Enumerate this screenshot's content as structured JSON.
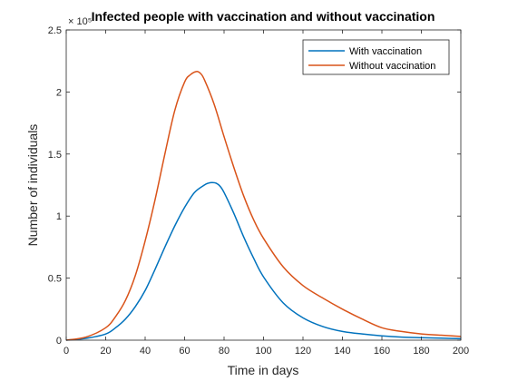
{
  "chart_data": {
    "type": "line",
    "title": "Infected people with vaccination and without vaccination",
    "xlabel": "Time in days",
    "ylabel": "Number of individuals",
    "y_exponent_label": "× 10⁵",
    "xlim": [
      0,
      200
    ],
    "ylim": [
      0,
      250000
    ],
    "xticks": [
      0,
      20,
      40,
      60,
      80,
      100,
      120,
      140,
      160,
      180,
      200
    ],
    "yticks": [
      0,
      50000,
      100000,
      150000,
      200000,
      250000
    ],
    "ytick_labels": [
      "0",
      "0.5",
      "1",
      "1.5",
      "2",
      "2.5"
    ],
    "grid": false,
    "legend_position": "top-right",
    "series": [
      {
        "name": "With vaccination",
        "color": "#0072BD",
        "x": [
          0,
          10,
          20,
          25,
          30,
          35,
          40,
          45,
          50,
          55,
          60,
          65,
          70,
          72,
          74,
          76,
          78,
          80,
          85,
          90,
          95,
          100,
          110,
          120,
          130,
          140,
          150,
          160,
          170,
          180,
          190,
          200
        ],
        "y": [
          0,
          1500,
          5000,
          10000,
          17000,
          27000,
          40000,
          57000,
          75000,
          92000,
          107000,
          119000,
          125000,
          126500,
          127000,
          126500,
          124000,
          119000,
          102000,
          83000,
          66000,
          51000,
          30000,
          18000,
          11000,
          7000,
          5000,
          3500,
          2500,
          2000,
          1600,
          1200
        ]
      },
      {
        "name": "Without vaccination",
        "color": "#D95319",
        "x": [
          0,
          10,
          20,
          25,
          30,
          35,
          40,
          45,
          50,
          55,
          60,
          63,
          66,
          68,
          70,
          75,
          80,
          85,
          90,
          95,
          100,
          110,
          120,
          130,
          140,
          150,
          160,
          170,
          180,
          190,
          200
        ],
        "y": [
          0,
          2500,
          10000,
          19000,
          32000,
          52000,
          80000,
          113000,
          150000,
          185000,
          208000,
          214000,
          216500,
          215000,
          210000,
          190000,
          164000,
          139000,
          116000,
          97000,
          82000,
          59000,
          44000,
          34000,
          25000,
          17000,
          10000,
          7000,
          5000,
          4000,
          3000
        ]
      }
    ]
  }
}
